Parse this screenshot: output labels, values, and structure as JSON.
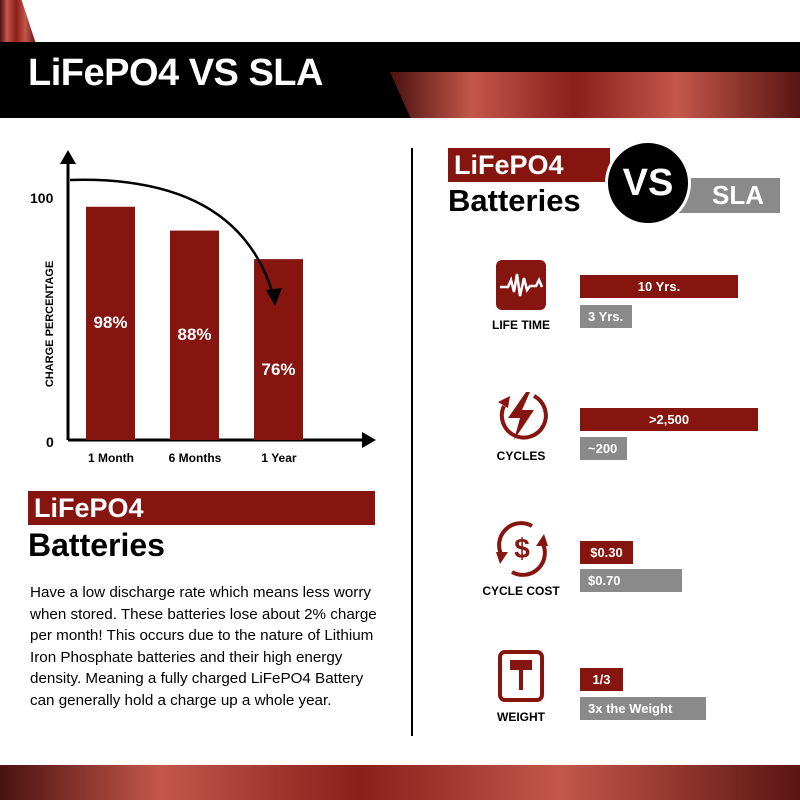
{
  "header": {
    "title": "LiFePO4 VS SLA"
  },
  "colors": {
    "accent": "#861510",
    "gray": "#8a8a8a",
    "black": "#000000"
  },
  "chart_data": {
    "type": "bar",
    "ylabel": "CHARGE PERCENTAGE",
    "categories": [
      "1 Month",
      "6 Months",
      "1 Year"
    ],
    "values": [
      98,
      88,
      76
    ],
    "data_labels": [
      "98%",
      "88%",
      "76%"
    ],
    "yticks": [
      "0",
      "100"
    ],
    "ylim": [
      0,
      100
    ]
  },
  "left": {
    "heading_tag": "LiFePO4",
    "heading": "Batteries",
    "body": "Have a low discharge rate which means less worry when stored. These batteries lose about 2% charge per month! This occurs due to the nature of Lithium Iron Phosphate batteries and their high energy density. Meaning a fully charged LiFePO4 Battery can generally hold a charge up a whole year."
  },
  "right": {
    "tag": "LiFePO4",
    "heading": "Batteries",
    "vs": "VS",
    "sla": "SLA",
    "rows": [
      {
        "label": "LIFE TIME",
        "icon": "heartbeat-icon",
        "lifepo4": "10 Yrs.",
        "sla": "3 Yrs."
      },
      {
        "label": "CYCLES",
        "icon": "lightning-cycle-icon",
        "lifepo4": ">2,500",
        "sla": "~200"
      },
      {
        "label": "CYCLE COST",
        "icon": "dollar-cycle-icon",
        "lifepo4": "$0.30",
        "sla": "$0.70"
      },
      {
        "label": "WEIGHT",
        "icon": "scale-icon",
        "lifepo4": "1/3",
        "sla": "3x the Weight"
      }
    ]
  }
}
